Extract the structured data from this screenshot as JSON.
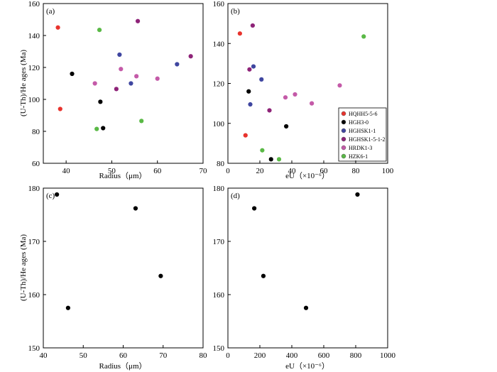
{
  "colors": {
    "HQHH5-5-6": "#e8332d",
    "HGH3-0": "#000000",
    "HGHSK1-1": "#3f46a0",
    "HGHSK1-5-1-2": "#8e2378",
    "HRDK1-3": "#c45aa8",
    "HZK6-1": "#5ab946"
  },
  "legend": {
    "entries": [
      "HQHH5-5-6",
      "HGH3-0",
      "HGHSK1-1",
      "HGHSK1-5-1-2",
      "HRDK1-3",
      "HZK6-1"
    ]
  },
  "chart_data": [
    {
      "id": "a",
      "type": "scatter",
      "panel_label": "(a)",
      "xlabel": "Radius（μm）",
      "ylabel": "(U-Th)/He  ages  (Ma)",
      "xlim": [
        35,
        70
      ],
      "ylim": [
        60,
        160
      ],
      "xticks": [
        40,
        50,
        60,
        70
      ],
      "yticks": [
        60,
        80,
        100,
        120,
        140,
        160
      ],
      "series": [
        {
          "name": "HQHH5-5-6",
          "points": [
            [
              38.2,
              145
            ],
            [
              38.7,
              94
            ]
          ]
        },
        {
          "name": "HGH3-0",
          "points": [
            [
              41.3,
              116
            ],
            [
              47.5,
              98.5
            ],
            [
              48.1,
              82
            ]
          ]
        },
        {
          "name": "HGHSK1-1",
          "points": [
            [
              51.7,
              128
            ],
            [
              54.2,
              110
            ],
            [
              64.3,
              122
            ]
          ]
        },
        {
          "name": "HGHSK1-5-1-2",
          "points": [
            [
              51,
              106.5
            ],
            [
              55.7,
              149
            ],
            [
              67.3,
              127
            ]
          ]
        },
        {
          "name": "HRDK1-3",
          "points": [
            [
              46.3,
              110
            ],
            [
              52,
              119
            ],
            [
              55.4,
              114.5
            ],
            [
              60,
              113
            ]
          ]
        },
        {
          "name": "HZK6-1",
          "points": [
            [
              47.3,
              143.5
            ],
            [
              46.7,
              81.5
            ],
            [
              56.5,
              86.5
            ]
          ]
        }
      ]
    },
    {
      "id": "b",
      "type": "scatter",
      "panel_label": "(b)",
      "xlabel": "eU（×10⁻⁶）",
      "ylabel": "",
      "xlim": [
        0,
        100
      ],
      "ylim": [
        80,
        160
      ],
      "xticks": [
        0,
        20,
        40,
        60,
        80,
        100
      ],
      "yticks": [
        80,
        100,
        120,
        140,
        160
      ],
      "legend": "right",
      "series": [
        {
          "name": "HQHH5-5-6",
          "points": [
            [
              7.5,
              145
            ],
            [
              11,
              94
            ]
          ]
        },
        {
          "name": "HGH3-0",
          "points": [
            [
              13,
              116
            ],
            [
              36.5,
              98.5
            ],
            [
              27,
              82
            ]
          ]
        },
        {
          "name": "HGHSK1-1",
          "points": [
            [
              16,
              128.5
            ],
            [
              21,
              122
            ],
            [
              14,
              109.5
            ]
          ]
        },
        {
          "name": "HGHSK1-5-1-2",
          "points": [
            [
              15.5,
              149
            ],
            [
              13.5,
              127
            ],
            [
              26,
              106.5
            ]
          ]
        },
        {
          "name": "HRDK1-3",
          "points": [
            [
              36,
              113
            ],
            [
              42,
              114.5
            ],
            [
              52.5,
              110
            ],
            [
              70,
              119
            ]
          ]
        },
        {
          "name": "HZK6-1",
          "points": [
            [
              85,
              143.5
            ],
            [
              21.5,
              86.5
            ],
            [
              32,
              82
            ]
          ]
        }
      ]
    },
    {
      "id": "c",
      "type": "scatter",
      "panel_label": "(c)",
      "xlabel": "Radius（μm）",
      "ylabel": "(U-Th)/He  ages  (Ma)",
      "xlim": [
        40,
        80
      ],
      "ylim": [
        150,
        180
      ],
      "xticks": [
        40,
        50,
        60,
        70,
        80
      ],
      "yticks": [
        150,
        160,
        170,
        180
      ],
      "series": [
        {
          "name": "HGH3-0",
          "points": [
            [
              43.4,
              178.8
            ],
            [
              46.2,
              157.5
            ],
            [
              63.1,
              176.2
            ],
            [
              69.4,
              163.5
            ]
          ]
        }
      ]
    },
    {
      "id": "d",
      "type": "scatter",
      "panel_label": "(d)",
      "xlabel": "eU（×10⁻⁶）",
      "ylabel": "",
      "xlim": [
        0,
        1000
      ],
      "ylim": [
        150,
        180
      ],
      "xticks": [
        0,
        200,
        400,
        600,
        800,
        1000
      ],
      "yticks": [
        150,
        160,
        170,
        180
      ],
      "series": [
        {
          "name": "HGH3-0",
          "points": [
            [
              811,
              178.8
            ],
            [
              165,
              176.2
            ],
            [
              222,
              163.5
            ],
            [
              489,
              157.5
            ]
          ]
        }
      ]
    }
  ]
}
